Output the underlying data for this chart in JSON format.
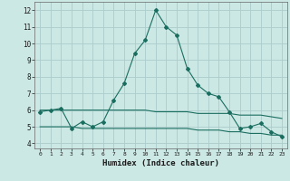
{
  "xlabel": "Humidex (Indice chaleur)",
  "ylabel": "",
  "xlim": [
    -0.5,
    23.5
  ],
  "ylim": [
    3.7,
    12.5
  ],
  "xticks": [
    0,
    1,
    2,
    3,
    4,
    5,
    6,
    7,
    8,
    9,
    10,
    11,
    12,
    13,
    14,
    15,
    16,
    17,
    18,
    19,
    20,
    21,
    22,
    23
  ],
  "yticks": [
    4,
    5,
    6,
    7,
    8,
    9,
    10,
    11,
    12
  ],
  "background_color": "#cce8e4",
  "grid_color": "#aaccca",
  "line_color": "#1a6e60",
  "line1_x": [
    0,
    1,
    2,
    3,
    4,
    5,
    6,
    7,
    8,
    9,
    10,
    11,
    12,
    13,
    14,
    15,
    16,
    17,
    18,
    19,
    20,
    21,
    22,
    23
  ],
  "line1_y": [
    5.9,
    6.0,
    6.1,
    4.9,
    5.3,
    5.0,
    5.3,
    6.6,
    7.6,
    9.4,
    10.2,
    12.0,
    11.0,
    10.5,
    8.5,
    7.5,
    7.0,
    6.8,
    5.9,
    4.9,
    5.0,
    5.2,
    4.7,
    4.4
  ],
  "line2_x": [
    0,
    1,
    2,
    3,
    4,
    5,
    6,
    7,
    8,
    9,
    10,
    11,
    12,
    13,
    14,
    15,
    16,
    17,
    18,
    19,
    20,
    21,
    22,
    23
  ],
  "line2_y": [
    6.0,
    6.0,
    6.0,
    6.0,
    6.0,
    6.0,
    6.0,
    6.0,
    6.0,
    6.0,
    6.0,
    5.9,
    5.9,
    5.9,
    5.9,
    5.8,
    5.8,
    5.8,
    5.8,
    5.7,
    5.7,
    5.7,
    5.6,
    5.5
  ],
  "line3_x": [
    0,
    1,
    2,
    3,
    4,
    5,
    6,
    7,
    8,
    9,
    10,
    11,
    12,
    13,
    14,
    15,
    16,
    17,
    18,
    19,
    20,
    21,
    22,
    23
  ],
  "line3_y": [
    5.0,
    5.0,
    5.0,
    5.0,
    4.9,
    4.9,
    4.9,
    4.9,
    4.9,
    4.9,
    4.9,
    4.9,
    4.9,
    4.9,
    4.9,
    4.8,
    4.8,
    4.8,
    4.7,
    4.7,
    4.6,
    4.6,
    4.5,
    4.5
  ]
}
